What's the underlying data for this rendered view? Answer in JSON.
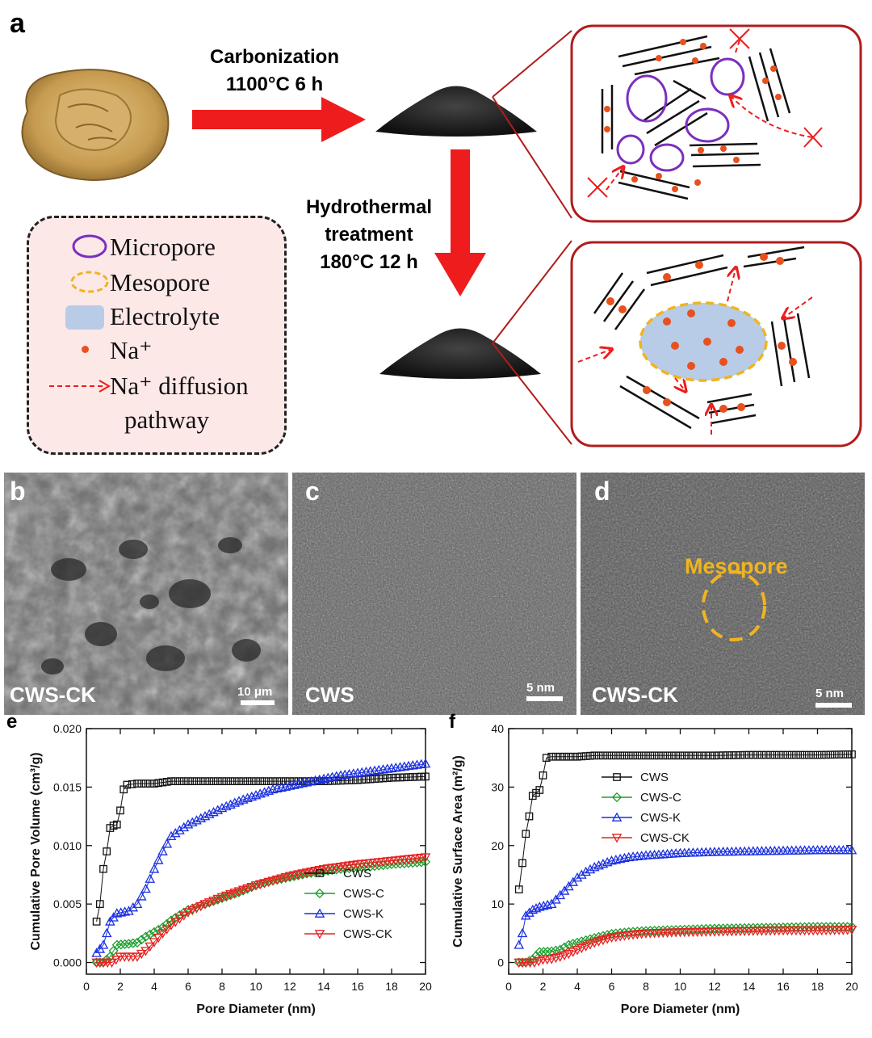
{
  "panels": {
    "a": "a",
    "b": "b",
    "c": "c",
    "d": "d",
    "e": "e",
    "f": "f"
  },
  "process": {
    "step1_line1": "Carbonization",
    "step1_line2": "1100°C  6 h",
    "step2_line1": "Hydrothermal",
    "step2_line2": "treatment",
    "step2_line3": "180°C  12 h"
  },
  "legend": {
    "micropore": "Micropore",
    "mesopore": "Mesopore",
    "electrolyte": "Electrolyte",
    "na": "Na⁺",
    "diffusion_line1": "Na⁺  diffusion",
    "diffusion_line2": "pathway"
  },
  "micrographs": {
    "b_sample": "CWS-CK",
    "b_scale": "10 μm",
    "c_sample": "CWS",
    "c_scale": "5 nm",
    "d_sample": "CWS-CK",
    "d_scale": "5 nm",
    "d_annotation": "Mesopore"
  },
  "colors": {
    "arrow": "#ee1c1c",
    "micropore": "#7b2fbe",
    "mesopore": "#f0b420",
    "electrolyte": "#b8cce8",
    "na": "#e8501e",
    "box_border": "#b01c1c",
    "CWS": "#111111",
    "CWS-C": "#1e9e2e",
    "CWS-K": "#1a2fe0",
    "CWS-CK": "#e82020"
  },
  "chart_data": [
    {
      "type": "scatter",
      "panel": "e",
      "xlabel": "Pore Diameter (nm)",
      "ylabel": "Cumulative Pore Volume (cm³/g)",
      "xlim": [
        0,
        20
      ],
      "ylim": [
        -0.001,
        0.02
      ],
      "xticks": [
        0,
        2,
        4,
        6,
        8,
        10,
        12,
        14,
        16,
        18,
        20
      ],
      "yticks": [
        0.0,
        0.005,
        0.01,
        0.015,
        0.02
      ],
      "ytick_labels": [
        "0.000",
        "0.005",
        "0.010",
        "0.015",
        "0.020"
      ],
      "legend_position": "lower-right",
      "series": [
        {
          "name": "CWS",
          "marker": "square",
          "color": "#111111",
          "points": [
            [
              0.6,
              0.0035
            ],
            [
              0.8,
              0.005
            ],
            [
              1.0,
              0.008
            ],
            [
              1.2,
              0.0095
            ],
            [
              1.4,
              0.0115
            ],
            [
              1.6,
              0.0117
            ],
            [
              1.8,
              0.0118
            ],
            [
              2.0,
              0.013
            ],
            [
              2.2,
              0.0148
            ],
            [
              2.4,
              0.0152
            ],
            [
              3,
              0.0153
            ],
            [
              4,
              0.0153
            ],
            [
              5,
              0.0155
            ],
            [
              6,
              0.0155
            ],
            [
              8,
              0.0155
            ],
            [
              10,
              0.0155
            ],
            [
              12,
              0.0155
            ],
            [
              14,
              0.0155
            ],
            [
              16,
              0.0156
            ],
            [
              18,
              0.0158
            ],
            [
              20,
              0.0159
            ]
          ]
        },
        {
          "name": "CWS-C",
          "marker": "diamond",
          "color": "#1e9e2e",
          "points": [
            [
              0.6,
              0.0
            ],
            [
              1.0,
              0.0
            ],
            [
              1.4,
              0.0005
            ],
            [
              1.8,
              0.0015
            ],
            [
              2.5,
              0.0016
            ],
            [
              3.0,
              0.0017
            ],
            [
              3.5,
              0.0022
            ],
            [
              4.5,
              0.003
            ],
            [
              5,
              0.0036
            ],
            [
              6,
              0.0045
            ],
            [
              7,
              0.005
            ],
            [
              8,
              0.0055
            ],
            [
              9,
              0.006
            ],
            [
              10,
              0.0066
            ],
            [
              11,
              0.007
            ],
            [
              12,
              0.0073
            ],
            [
              13,
              0.0076
            ],
            [
              14,
              0.0078
            ],
            [
              15,
              0.008
            ],
            [
              16,
              0.0081
            ],
            [
              18,
              0.0084
            ],
            [
              20,
              0.0086
            ]
          ]
        },
        {
          "name": "CWS-K",
          "marker": "triangle-up",
          "color": "#1a2fe0",
          "points": [
            [
              0.6,
              0.0008
            ],
            [
              1.0,
              0.0015
            ],
            [
              1.4,
              0.0035
            ],
            [
              1.8,
              0.0042
            ],
            [
              2.5,
              0.0044
            ],
            [
              3.0,
              0.005
            ],
            [
              3.5,
              0.0063
            ],
            [
              4.0,
              0.008
            ],
            [
              4.5,
              0.0095
            ],
            [
              5,
              0.0108
            ],
            [
              6,
              0.0118
            ],
            [
              7,
              0.0125
            ],
            [
              8,
              0.0132
            ],
            [
              9,
              0.0138
            ],
            [
              10,
              0.0143
            ],
            [
              11,
              0.0148
            ],
            [
              12,
              0.0151
            ],
            [
              13,
              0.0154
            ],
            [
              14,
              0.0157
            ],
            [
              15,
              0.016
            ],
            [
              16,
              0.0162
            ],
            [
              18,
              0.0166
            ],
            [
              20,
              0.017
            ]
          ]
        },
        {
          "name": "CWS-CK",
          "marker": "triangle-down",
          "color": "#e82020",
          "points": [
            [
              0.6,
              0.0
            ],
            [
              1.0,
              0.0
            ],
            [
              1.5,
              0.0
            ],
            [
              2.0,
              0.0005
            ],
            [
              2.5,
              0.0005
            ],
            [
              3.0,
              0.0005
            ],
            [
              3.5,
              0.001
            ],
            [
              4.5,
              0.0025
            ],
            [
              5,
              0.0032
            ],
            [
              6,
              0.0043
            ],
            [
              7,
              0.005
            ],
            [
              8,
              0.0056
            ],
            [
              9,
              0.0061
            ],
            [
              10,
              0.0066
            ],
            [
              11,
              0.007
            ],
            [
              12,
              0.0074
            ],
            [
              13,
              0.0077
            ],
            [
              14,
              0.008
            ],
            [
              15,
              0.0082
            ],
            [
              16,
              0.0084
            ],
            [
              18,
              0.0087
            ],
            [
              20,
              0.009
            ]
          ]
        }
      ]
    },
    {
      "type": "scatter",
      "panel": "f",
      "xlabel": "Pore Diameter (nm)",
      "ylabel": "Cumulative Surface Area (m²/g)",
      "xlim": [
        0,
        20
      ],
      "ylim": [
        -2,
        40
      ],
      "xticks": [
        0,
        2,
        4,
        6,
        8,
        10,
        12,
        14,
        16,
        18,
        20
      ],
      "yticks": [
        0,
        10,
        20,
        30,
        40
      ],
      "ytick_labels": [
        "0",
        "10",
        "20",
        "30",
        "40"
      ],
      "legend_position": "center-left",
      "series": [
        {
          "name": "CWS",
          "marker": "square",
          "color": "#111111",
          "points": [
            [
              0.6,
              12.5
            ],
            [
              0.8,
              17
            ],
            [
              1.0,
              22
            ],
            [
              1.2,
              25
            ],
            [
              1.4,
              28.5
            ],
            [
              1.6,
              29
            ],
            [
              1.8,
              29.5
            ],
            [
              2.0,
              32
            ],
            [
              2.2,
              35
            ],
            [
              2.5,
              35.2
            ],
            [
              3,
              35.2
            ],
            [
              4,
              35.2
            ],
            [
              5,
              35.4
            ],
            [
              6,
              35.4
            ],
            [
              8,
              35.4
            ],
            [
              10,
              35.4
            ],
            [
              12,
              35.4
            ],
            [
              14,
              35.5
            ],
            [
              16,
              35.5
            ],
            [
              18,
              35.5
            ],
            [
              20,
              35.6
            ]
          ]
        },
        {
          "name": "CWS-C",
          "marker": "diamond",
          "color": "#1e9e2e",
          "points": [
            [
              0.6,
              0.0
            ],
            [
              1.0,
              0.0
            ],
            [
              1.4,
              0.5
            ],
            [
              1.8,
              1.8
            ],
            [
              2.5,
              1.9
            ],
            [
              3.0,
              2.2
            ],
            [
              3.5,
              3.0
            ],
            [
              4.5,
              3.8
            ],
            [
              5,
              4.2
            ],
            [
              6,
              4.9
            ],
            [
              7,
              5.2
            ],
            [
              8,
              5.4
            ],
            [
              9,
              5.5
            ],
            [
              10,
              5.6
            ],
            [
              12,
              5.8
            ],
            [
              14,
              5.9
            ],
            [
              16,
              6.0
            ],
            [
              18,
              6.1
            ],
            [
              20,
              6.1
            ]
          ]
        },
        {
          "name": "CWS-K",
          "marker": "triangle-up",
          "color": "#1a2fe0",
          "points": [
            [
              0.6,
              3
            ],
            [
              0.8,
              5
            ],
            [
              1.0,
              8
            ],
            [
              1.4,
              9
            ],
            [
              1.8,
              9.5
            ],
            [
              2.5,
              10
            ],
            [
              3.0,
              11.5
            ],
            [
              3.5,
              13
            ],
            [
              4.0,
              14.5
            ],
            [
              4.5,
              15.5
            ],
            [
              5,
              16.3
            ],
            [
              6,
              17.4
            ],
            [
              7,
              18
            ],
            [
              8,
              18.3
            ],
            [
              9,
              18.5
            ],
            [
              10,
              18.7
            ],
            [
              12,
              18.9
            ],
            [
              14,
              19
            ],
            [
              16,
              19.1
            ],
            [
              18,
              19.2
            ],
            [
              20,
              19.2
            ]
          ]
        },
        {
          "name": "CWS-CK",
          "marker": "triangle-down",
          "color": "#e82020",
          "points": [
            [
              0.6,
              0.0
            ],
            [
              1.0,
              0.0
            ],
            [
              1.5,
              0.0
            ],
            [
              2.0,
              0.5
            ],
            [
              2.5,
              0.6
            ],
            [
              3.0,
              1.0
            ],
            [
              3.5,
              1.5
            ],
            [
              4.5,
              2.8
            ],
            [
              5,
              3.4
            ],
            [
              6,
              4.3
            ],
            [
              7,
              4.7
            ],
            [
              8,
              5.0
            ],
            [
              9,
              5.1
            ],
            [
              10,
              5.2
            ],
            [
              12,
              5.3
            ],
            [
              14,
              5.4
            ],
            [
              16,
              5.5
            ],
            [
              18,
              5.5
            ],
            [
              20,
              5.6
            ]
          ]
        }
      ]
    }
  ]
}
